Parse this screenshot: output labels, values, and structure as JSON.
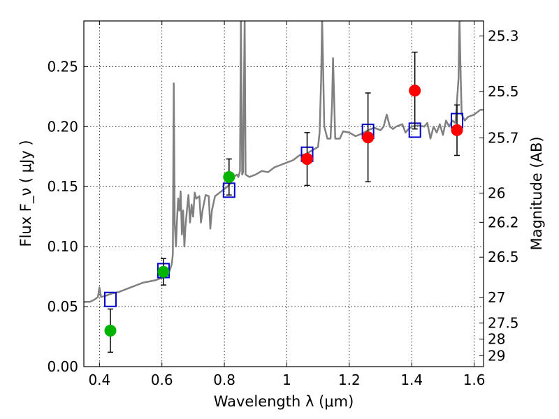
{
  "chart_data": {
    "type": "scatter",
    "xlabel": "Wavelength  λ (μm)",
    "ylabel": "Flux  F_ν  ( μJy )",
    "y2label": "Magnitude (AB)",
    "xlim": [
      0.35,
      1.63
    ],
    "ylim": [
      0.0,
      0.288
    ],
    "grid": true,
    "x_ticks": [
      {
        "value": 0.4,
        "label": "0.4"
      },
      {
        "value": 0.6,
        "label": "0.6"
      },
      {
        "value": 0.8,
        "label": "0.8"
      },
      {
        "value": 1.0,
        "label": "1"
      },
      {
        "value": 1.2,
        "label": "1.2"
      },
      {
        "value": 1.4,
        "label": "1.4"
      },
      {
        "value": 1.6,
        "label": "1.6"
      }
    ],
    "y_ticks": [
      {
        "value": 0.0,
        "label": "0.00"
      },
      {
        "value": 0.05,
        "label": "0.05"
      },
      {
        "value": 0.1,
        "label": "0.10"
      },
      {
        "value": 0.15,
        "label": "0.15"
      },
      {
        "value": 0.2,
        "label": "0.20"
      },
      {
        "value": 0.25,
        "label": "0.25"
      }
    ],
    "mag_ticks": [
      {
        "mag": 25.3,
        "label": "25.3"
      },
      {
        "mag": 25.5,
        "label": "25.5"
      },
      {
        "mag": 25.7,
        "label": "25.7"
      },
      {
        "mag": 26.0,
        "label": "26"
      },
      {
        "mag": 26.2,
        "label": "26.2"
      },
      {
        "mag": 26.5,
        "label": "26.5"
      },
      {
        "mag": 27.0,
        "label": "27"
      },
      {
        "mag": 27.5,
        "label": "27.5"
      },
      {
        "mag": 28.0,
        "label": "28"
      },
      {
        "mag": 29.0,
        "label": "29"
      }
    ],
    "series": [
      {
        "style": "line",
        "color": "#808080",
        "points": [
          [
            0.35,
            0.054
          ],
          [
            0.37,
            0.054
          ],
          [
            0.385,
            0.056
          ],
          [
            0.395,
            0.058
          ],
          [
            0.4,
            0.066
          ],
          [
            0.405,
            0.058
          ],
          [
            0.42,
            0.059
          ],
          [
            0.44,
            0.061
          ],
          [
            0.46,
            0.062
          ],
          [
            0.48,
            0.064
          ],
          [
            0.5,
            0.066
          ],
          [
            0.52,
            0.068
          ],
          [
            0.54,
            0.07
          ],
          [
            0.56,
            0.071
          ],
          [
            0.58,
            0.072
          ],
          [
            0.6,
            0.074
          ],
          [
            0.61,
            0.079
          ],
          [
            0.615,
            0.075
          ],
          [
            0.625,
            0.08
          ],
          [
            0.632,
            0.086
          ],
          [
            0.635,
            0.094
          ],
          [
            0.638,
            0.236
          ],
          [
            0.641,
            0.12
          ],
          [
            0.645,
            0.1
          ],
          [
            0.648,
            0.12
          ],
          [
            0.652,
            0.14
          ],
          [
            0.656,
            0.13
          ],
          [
            0.66,
            0.146
          ],
          [
            0.664,
            0.11
          ],
          [
            0.668,
            0.13
          ],
          [
            0.672,
            0.1
          ],
          [
            0.675,
            0.115
          ],
          [
            0.68,
            0.13
          ],
          [
            0.685,
            0.143
          ],
          [
            0.69,
            0.12
          ],
          [
            0.695,
            0.135
          ],
          [
            0.7,
            0.125
          ],
          [
            0.705,
            0.145
          ],
          [
            0.71,
            0.14
          ],
          [
            0.72,
            0.142
          ],
          [
            0.725,
            0.12
          ],
          [
            0.73,
            0.13
          ],
          [
            0.74,
            0.143
          ],
          [
            0.75,
            0.142
          ],
          [
            0.755,
            0.115
          ],
          [
            0.76,
            0.13
          ],
          [
            0.77,
            0.142
          ],
          [
            0.78,
            0.144
          ],
          [
            0.79,
            0.146
          ],
          [
            0.8,
            0.148
          ],
          [
            0.81,
            0.15
          ],
          [
            0.82,
            0.153
          ],
          [
            0.83,
            0.158
          ],
          [
            0.84,
            0.16
          ],
          [
            0.845,
            0.158
          ],
          [
            0.85,
            0.163
          ],
          [
            0.853,
            0.29
          ],
          [
            0.857,
            0.16
          ],
          [
            0.86,
            0.162
          ],
          [
            0.865,
            0.29
          ],
          [
            0.868,
            0.16
          ],
          [
            0.88,
            0.158
          ],
          [
            0.9,
            0.16
          ],
          [
            0.92,
            0.163
          ],
          [
            0.94,
            0.162
          ],
          [
            0.96,
            0.166
          ],
          [
            0.98,
            0.168
          ],
          [
            1.0,
            0.17
          ],
          [
            1.02,
            0.172
          ],
          [
            1.04,
            0.176
          ],
          [
            1.06,
            0.177
          ],
          [
            1.08,
            0.18
          ],
          [
            1.1,
            0.183
          ],
          [
            1.105,
            0.195
          ],
          [
            1.11,
            0.24
          ],
          [
            1.113,
            0.29
          ],
          [
            1.117,
            0.24
          ],
          [
            1.12,
            0.2
          ],
          [
            1.13,
            0.19
          ],
          [
            1.14,
            0.19
          ],
          [
            1.145,
            0.22
          ],
          [
            1.148,
            0.257
          ],
          [
            1.152,
            0.22
          ],
          [
            1.155,
            0.19
          ],
          [
            1.17,
            0.19
          ],
          [
            1.18,
            0.196
          ],
          [
            1.2,
            0.195
          ],
          [
            1.22,
            0.192
          ],
          [
            1.24,
            0.194
          ],
          [
            1.26,
            0.197
          ],
          [
            1.28,
            0.199
          ],
          [
            1.3,
            0.197
          ],
          [
            1.31,
            0.2
          ],
          [
            1.32,
            0.21
          ],
          [
            1.33,
            0.2
          ],
          [
            1.34,
            0.198
          ],
          [
            1.35,
            0.2
          ],
          [
            1.37,
            0.202
          ],
          [
            1.38,
            0.195
          ],
          [
            1.39,
            0.198
          ],
          [
            1.4,
            0.2
          ],
          [
            1.42,
            0.201
          ],
          [
            1.44,
            0.2
          ],
          [
            1.45,
            0.203
          ],
          [
            1.46,
            0.19
          ],
          [
            1.47,
            0.2
          ],
          [
            1.48,
            0.195
          ],
          [
            1.49,
            0.202
          ],
          [
            1.5,
            0.193
          ],
          [
            1.51,
            0.205
          ],
          [
            1.52,
            0.2
          ],
          [
            1.53,
            0.205
          ],
          [
            1.54,
            0.203
          ],
          [
            1.55,
            0.24
          ],
          [
            1.553,
            0.29
          ],
          [
            1.557,
            0.24
          ],
          [
            1.56,
            0.21
          ],
          [
            1.57,
            0.205
          ],
          [
            1.58,
            0.208
          ],
          [
            1.6,
            0.21
          ],
          [
            1.62,
            0.214
          ],
          [
            1.63,
            0.214
          ]
        ]
      },
      {
        "style": "open-square",
        "color": "#0000cc",
        "points": [
          [
            0.435,
            0.056
          ],
          [
            0.605,
            0.08
          ],
          [
            0.815,
            0.147
          ],
          [
            1.065,
            0.177
          ],
          [
            1.26,
            0.196
          ],
          [
            1.41,
            0.197
          ],
          [
            1.545,
            0.205
          ]
        ]
      },
      {
        "style": "filled-circle",
        "color": "#00b400",
        "points": [
          {
            "x": 0.435,
            "y": 0.03,
            "err": 0.018
          },
          {
            "x": 0.605,
            "y": 0.079,
            "err": 0.011
          },
          {
            "x": 0.815,
            "y": 0.158,
            "err": 0.015
          }
        ]
      },
      {
        "style": "filled-circle",
        "color": "#ff0000",
        "points": [
          {
            "x": 1.065,
            "y": 0.173,
            "err": 0.022
          },
          {
            "x": 1.26,
            "y": 0.191,
            "err": 0.037
          },
          {
            "x": 1.41,
            "y": 0.23,
            "err": 0.032
          },
          {
            "x": 1.545,
            "y": 0.197,
            "err": 0.021
          }
        ]
      }
    ]
  }
}
